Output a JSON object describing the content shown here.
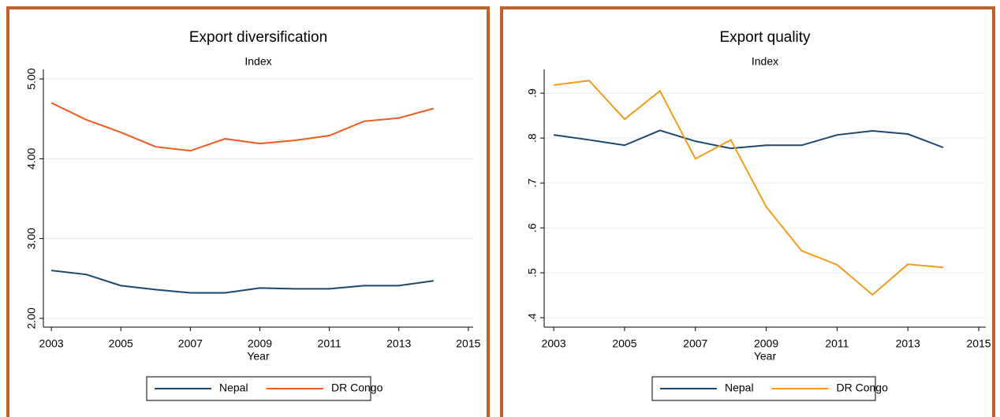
{
  "chart_data": [
    {
      "type": "line",
      "title": "Export diversification",
      "subtitle": "Index",
      "x_label": "Year",
      "x": [
        2003,
        2004,
        2005,
        2006,
        2007,
        2008,
        2009,
        2010,
        2011,
        2012,
        2013,
        2014
      ],
      "series": [
        {
          "name": "Nepal",
          "color": "#1a476f",
          "values": [
            2.6,
            2.55,
            2.41,
            2.36,
            2.32,
            2.32,
            2.38,
            2.37,
            2.37,
            2.41,
            2.41,
            2.47
          ]
        },
        {
          "name": "DR Congo",
          "color": "#ee5a1e",
          "values": [
            4.7,
            4.49,
            4.33,
            4.15,
            4.1,
            4.25,
            4.19,
            4.23,
            4.29,
            4.47,
            4.51,
            4.63
          ]
        }
      ],
      "xlim": [
        2002.77,
        2015.14
      ],
      "xticks": [
        2003,
        2005,
        2007,
        2009,
        2011,
        2013,
        2015
      ],
      "ylim": [
        1.89,
        5.12
      ],
      "yticks": [
        {
          "value": 2,
          "label": "2.00"
        },
        {
          "value": 3,
          "label": "3.00"
        },
        {
          "value": 4,
          "label": "4.00"
        },
        {
          "value": 5,
          "label": "5.00"
        }
      ],
      "grid": true,
      "legend": "bottom"
    },
    {
      "type": "line",
      "title": "Export quality",
      "subtitle": "Index",
      "x_label": "Year",
      "x": [
        2003,
        2004,
        2005,
        2006,
        2007,
        2008,
        2009,
        2010,
        2011,
        2012,
        2013,
        2014
      ],
      "series": [
        {
          "name": "Nepal",
          "color": "#1a476f",
          "values": [
            0.807,
            0.796,
            0.784,
            0.817,
            0.793,
            0.777,
            0.784,
            0.784,
            0.807,
            0.816,
            0.809,
            0.779
          ]
        },
        {
          "name": "DR Congo",
          "color": "#f59a1b",
          "values": [
            0.918,
            0.928,
            0.842,
            0.905,
            0.754,
            0.796,
            0.647,
            0.549,
            0.518,
            0.451,
            0.519,
            0.512
          ]
        }
      ],
      "xlim": [
        2002.73,
        2015.2
      ],
      "xticks": [
        2003,
        2005,
        2007,
        2009,
        2011,
        2013,
        2015
      ],
      "ylim": [
        0.379,
        0.953
      ],
      "yticks": [
        {
          "value": 0.4,
          "label": ".4"
        },
        {
          "value": 0.5,
          "label": ".5"
        },
        {
          "value": 0.6,
          "label": ".6"
        },
        {
          "value": 0.7,
          "label": ".7"
        },
        {
          "value": 0.8,
          "label": ".8"
        },
        {
          "value": 0.9,
          "label": ".9"
        }
      ],
      "grid": true,
      "legend": "bottom"
    }
  ]
}
